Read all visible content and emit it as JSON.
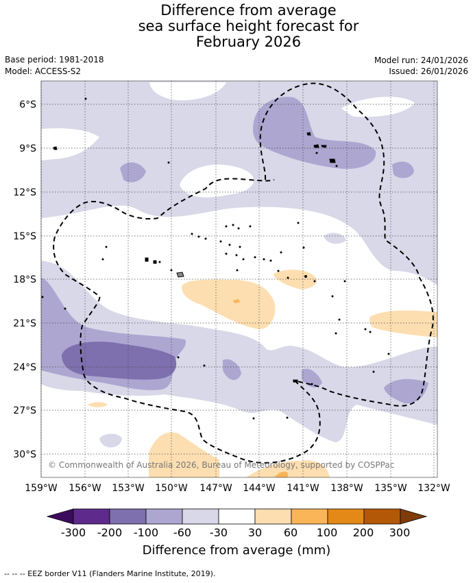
{
  "title": {
    "line1": "Difference from average",
    "line2": "sea surface height forecast for",
    "line3": "February 2026"
  },
  "meta": {
    "base_period": "Base period: 1981-2018",
    "model": "Model: ACCESS-S2",
    "model_run": "Model run: 24/01/2026",
    "issued": "Issued: 26/01/2026"
  },
  "map": {
    "lat_labels": [
      "6°S",
      "9°S",
      "12°S",
      "15°S",
      "18°S",
      "21°S",
      "24°S",
      "27°S",
      "30°S"
    ],
    "lon_labels": [
      "159°W",
      "156°W",
      "153°W",
      "150°W",
      "147°W",
      "144°W",
      "141°W",
      "138°W",
      "135°W",
      "132°W"
    ],
    "copyright": "© Commonwealth of Australia 2026, Bureau of Meteorology, supported by COSPPac"
  },
  "colorbar": {
    "ticks": [
      "-300",
      "-200",
      "-100",
      "-60",
      "-30",
      "30",
      "60",
      "100",
      "200",
      "300"
    ],
    "colors": [
      "#3d0b5e",
      "#5e2a8c",
      "#7e6fae",
      "#aca6d1",
      "#d8d8e9",
      "#ffffff",
      "#fddeb0",
      "#fbb559",
      "#e48817",
      "#b35807",
      "#7f3b08"
    ],
    "title": "Difference from average (mm)"
  },
  "footer": {
    "legend_text": "--  --  -- EEZ border V11 (Flanders Marine Institute, 2019)."
  }
}
